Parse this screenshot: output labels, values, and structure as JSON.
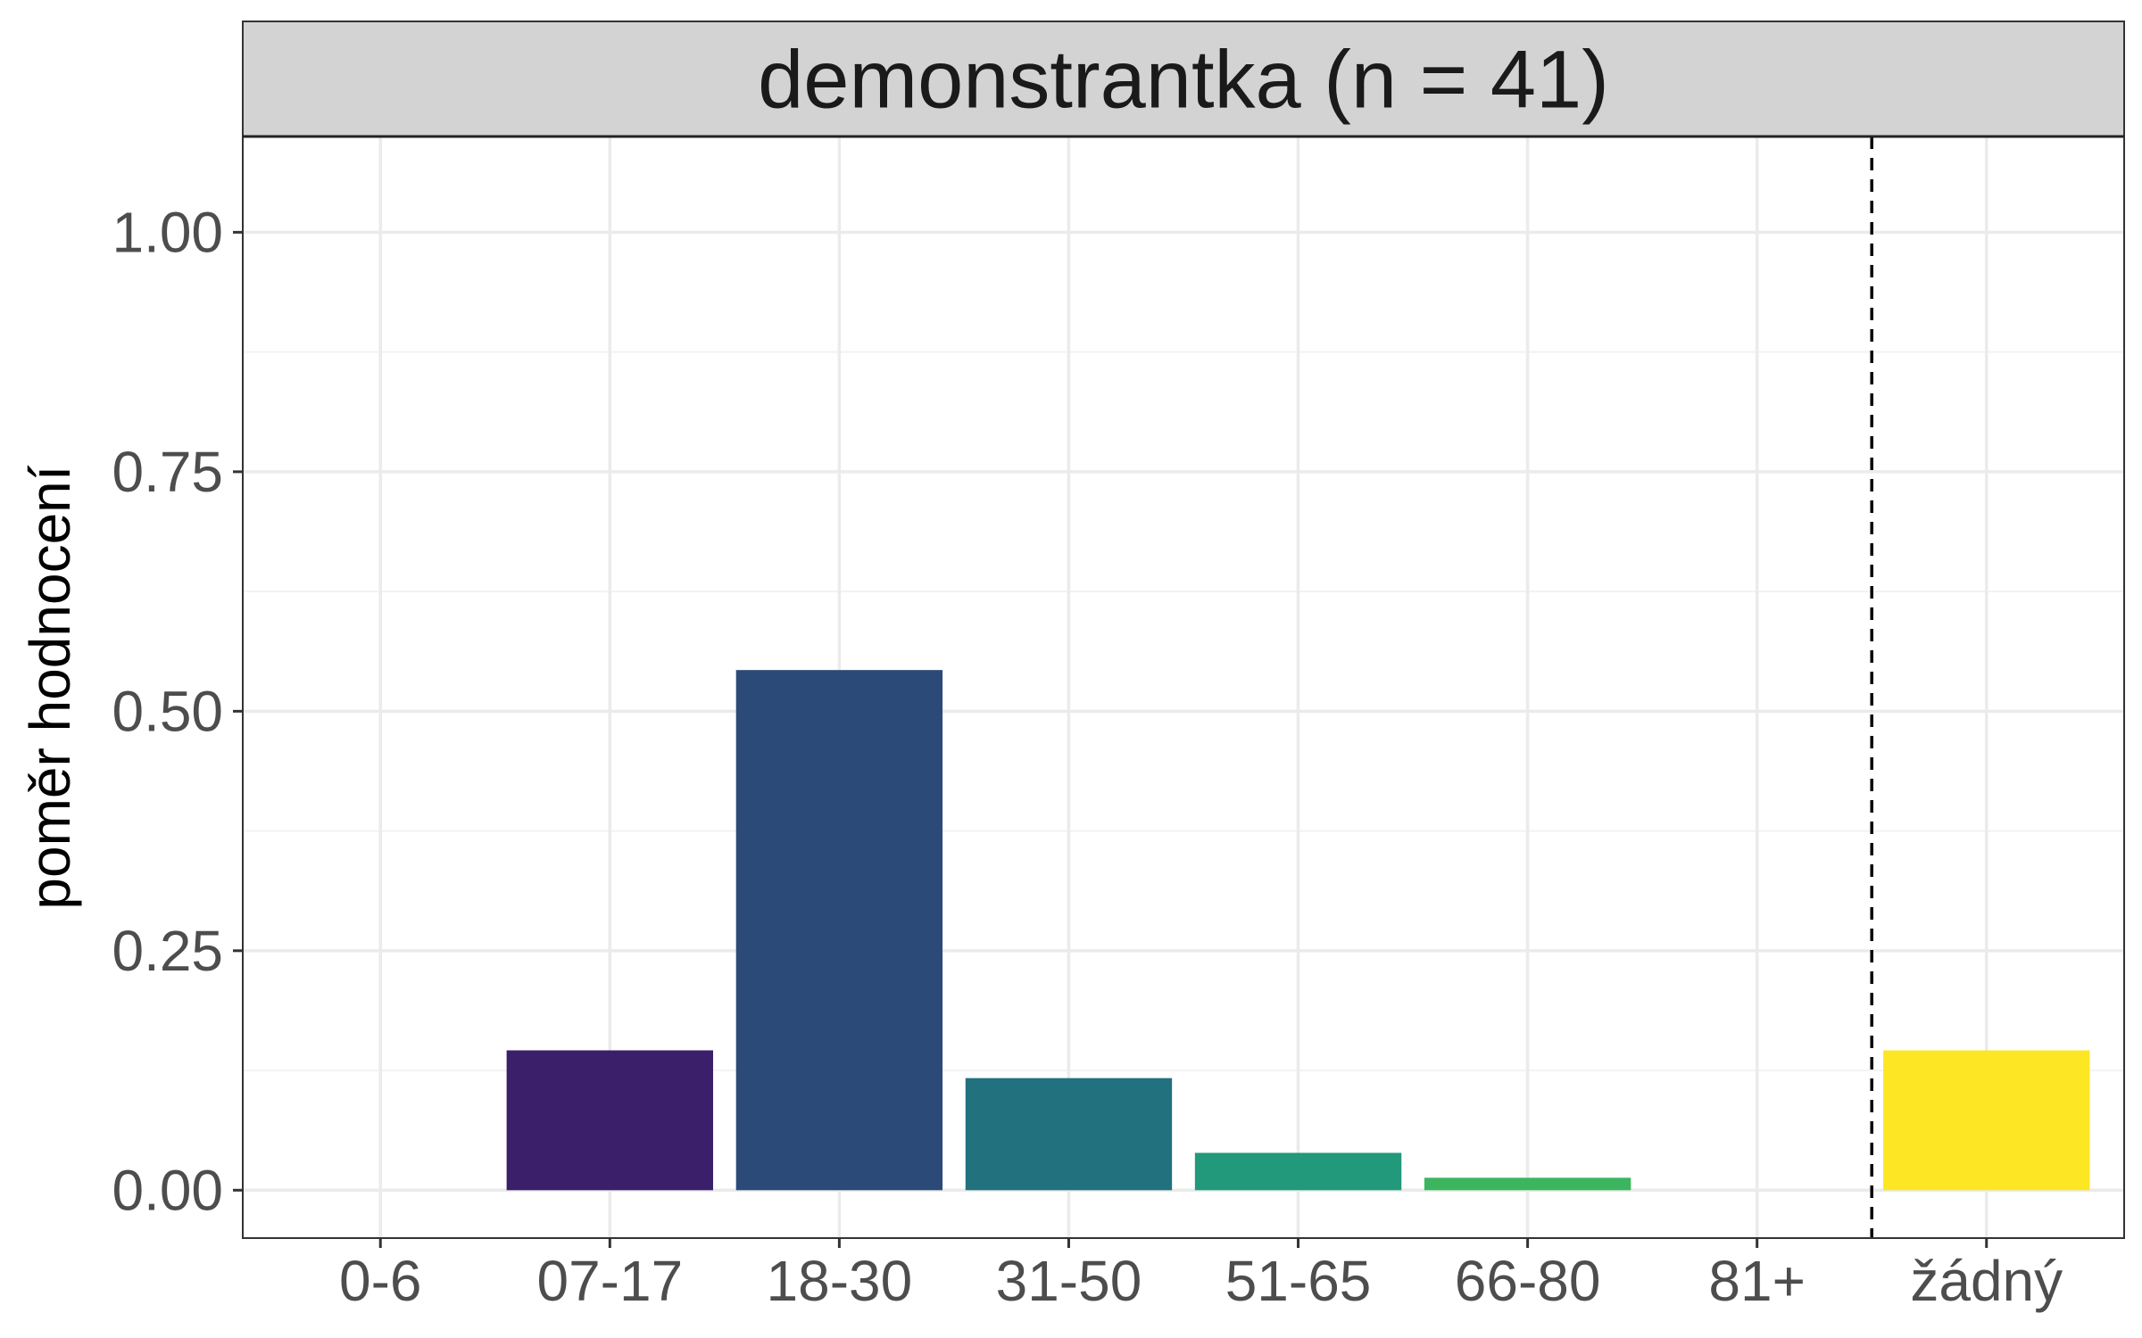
{
  "chart_data": {
    "type": "bar",
    "facet_label": "demonstrantka (n = 41)",
    "xlabel": "",
    "ylabel": "poměr hodnocení",
    "categories": [
      "0-6",
      "07-17",
      "18-30",
      "31-50",
      "51-65",
      "66-80",
      "81+",
      "žádný"
    ],
    "values": [
      0.0,
      0.146,
      0.543,
      0.117,
      0.039,
      0.013,
      0.0,
      0.146
    ],
    "colors": [
      "#440154",
      "#3B1F6B",
      "#2C4A78",
      "#21717E",
      "#21997A",
      "#3CB55F",
      "#7AD151",
      "#FDE725"
    ],
    "ylim": [
      -0.05,
      1.1
    ],
    "yticks": [
      0.0,
      0.25,
      0.5,
      0.75,
      1.0
    ],
    "ytick_labels": [
      "0.00",
      "0.25",
      "0.50",
      "0.75",
      "1.00"
    ],
    "separator_after_category": "81+",
    "grid": true,
    "theme": "bw"
  }
}
